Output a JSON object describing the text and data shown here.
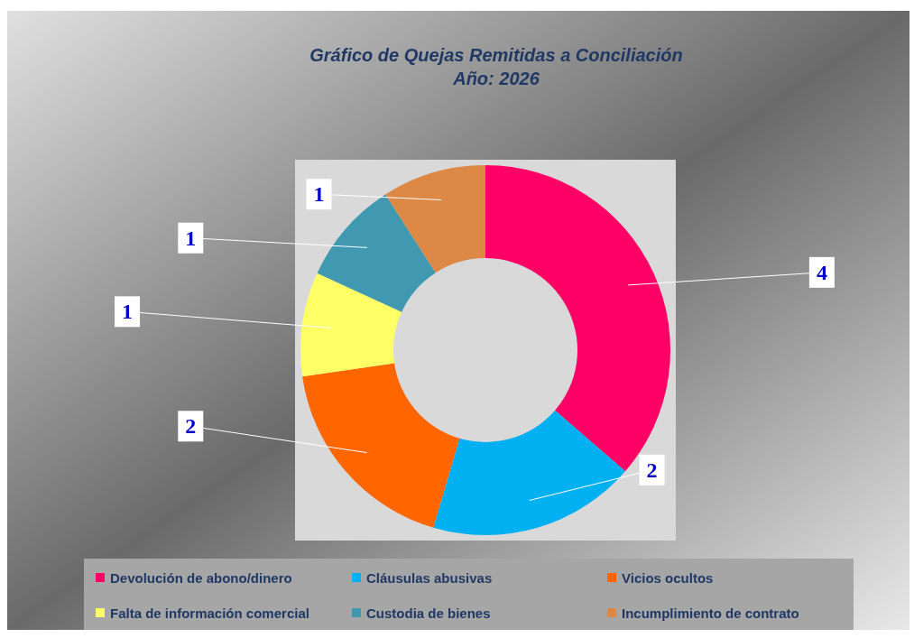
{
  "chart_data": {
    "type": "donut",
    "title": "Gráfico de Quejas Remitidas a Conciliación",
    "subtitle": "Año: 2026",
    "categories": [
      "Devolución de abono/dinero",
      "Cláusulas abusivas",
      "Vicios ocultos",
      "Falta de información comercial",
      "Custodia de bienes",
      "Incumplimiento de contrato"
    ],
    "values": [
      4,
      2,
      2,
      1,
      1,
      1
    ],
    "colors": [
      "#ff0066",
      "#00b0f0",
      "#ff6600",
      "#ffff66",
      "#4099b0",
      "#dd8844"
    ],
    "data_labels": true,
    "legend": "bottom"
  }
}
